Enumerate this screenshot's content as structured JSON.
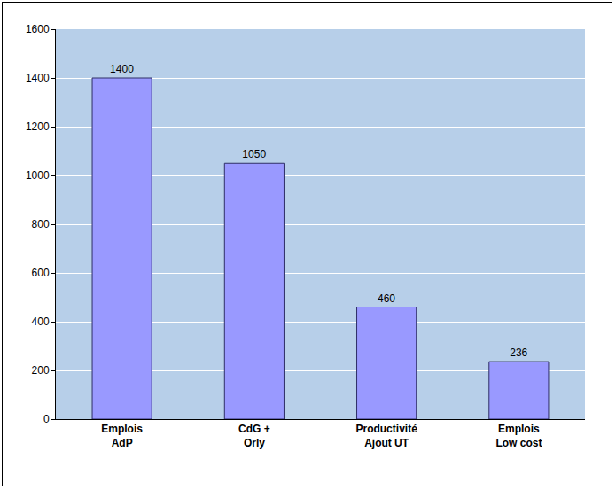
{
  "chart_data": {
    "type": "bar",
    "categories": [
      "Emplois AdP",
      "CdG + Orly",
      "Productivité Ajout UT",
      "Emplois Low cost"
    ],
    "values": [
      1400,
      1050,
      460,
      236
    ],
    "color": "#9999ff",
    "ylim": [
      0,
      1600
    ],
    "yticks": [
      0,
      200,
      400,
      600,
      800,
      1000,
      1200,
      1400,
      1600
    ],
    "grid": true,
    "data_labels": true
  }
}
